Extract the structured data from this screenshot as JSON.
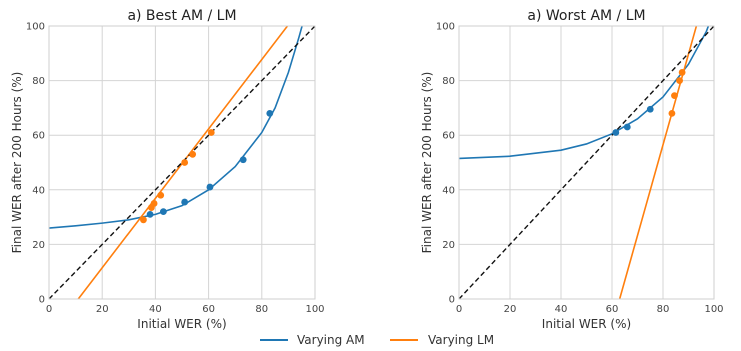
{
  "chart_data": [
    {
      "type": "line",
      "title": "a) Best AM / LM",
      "xlabel": "Initial WER (%)",
      "ylabel": "Final WER after 200 Hours (%)",
      "xlim": [
        0,
        100
      ],
      "ylim": [
        0,
        100
      ],
      "xticks": [
        "0",
        "20",
        "40",
        "60",
        "80",
        "100"
      ],
      "yticks": [
        "0",
        "20",
        "40",
        "60",
        "80",
        "100"
      ],
      "grid": true,
      "series": [
        {
          "name": "Varying AM",
          "color": "#1f77b4",
          "points": [
            [
              38,
              31
            ],
            [
              43,
              32
            ],
            [
              51,
              35.5
            ],
            [
              60.5,
              41
            ],
            [
              73,
              51
            ],
            [
              83,
              68
            ]
          ],
          "curve": [
            [
              0,
              26
            ],
            [
              10,
              26.8
            ],
            [
              20,
              27.8
            ],
            [
              30,
              29
            ],
            [
              40,
              31
            ],
            [
              50,
              34.2
            ],
            [
              60,
              40
            ],
            [
              70,
              48.5
            ],
            [
              80,
              61
            ],
            [
              85,
              70
            ],
            [
              90,
              83
            ],
            [
              94,
              96
            ],
            [
              96,
              103
            ]
          ]
        },
        {
          "name": "Varying LM",
          "color": "#ff7f0e",
          "points": [
            [
              35.5,
              29
            ],
            [
              38.5,
              33.5
            ],
            [
              39.5,
              35
            ],
            [
              42,
              38
            ],
            [
              51,
              50
            ],
            [
              54,
              53
            ],
            [
              61,
              61
            ]
          ],
          "curve": [
            [
              11,
              0
            ],
            [
              92,
              103
            ]
          ]
        }
      ],
      "diagonal": [
        [
          0,
          0
        ],
        [
          100,
          100
        ]
      ]
    },
    {
      "type": "line",
      "title": "a) Worst AM / LM",
      "xlabel": "Initial WER (%)",
      "ylabel": "Final WER after 200 Hours (%)",
      "xlim": [
        0,
        100
      ],
      "ylim": [
        0,
        100
      ],
      "xticks": [
        "0",
        "20",
        "40",
        "60",
        "80",
        "100"
      ],
      "yticks": [
        "0",
        "20",
        "40",
        "60",
        "80",
        "100"
      ],
      "grid": true,
      "series": [
        {
          "name": "Varying AM",
          "color": "#1f77b4",
          "points": [
            [
              61.5,
              61
            ],
            [
              66,
              63
            ],
            [
              75,
              69.5
            ]
          ],
          "curve": [
            [
              0,
              51.5
            ],
            [
              20,
              52.3
            ],
            [
              40,
              54.5
            ],
            [
              50,
              56.8
            ],
            [
              60,
              60.5
            ],
            [
              70,
              66
            ],
            [
              80,
              74
            ],
            [
              90,
              86
            ],
            [
              97,
              98
            ],
            [
              99,
              103
            ]
          ]
        },
        {
          "name": "Varying LM",
          "color": "#ff7f0e",
          "points": [
            [
              83.5,
              68
            ],
            [
              84.5,
              74.5
            ],
            [
              86.5,
              80
            ],
            [
              87.5,
              83
            ]
          ],
          "curve": [
            [
              63,
              0
            ],
            [
              94,
              103
            ]
          ]
        }
      ],
      "diagonal": [
        [
          0,
          0
        ],
        [
          100,
          100
        ]
      ]
    }
  ],
  "legend": {
    "placement": "bottom-center",
    "items": [
      {
        "label": "Varying AM",
        "color": "#1f77b4"
      },
      {
        "label": "Varying LM",
        "color": "#ff7f0e"
      }
    ]
  }
}
